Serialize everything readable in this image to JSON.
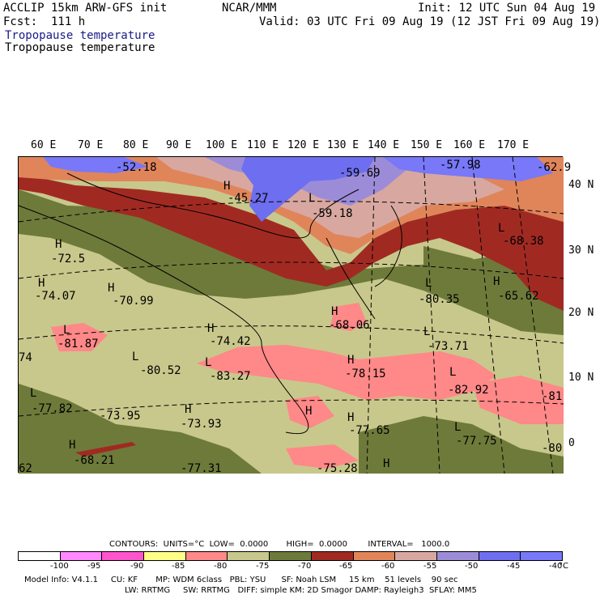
{
  "header": {
    "left_line1": "ACCLIP 15km ARW-GFS init",
    "left_line2": "Fcst:  111 h",
    "center": "NCAR/MMM",
    "right_line1": "Init: 12 UTC Sun 04 Aug 19",
    "right_line2": "Valid: 03 UTC Fri 09 Aug 19 (12 JST Fri 09 Aug 19)",
    "field_title_1": "Tropopause temperature",
    "field_title_2": "Tropopause temperature"
  },
  "map": {
    "longitude_labels": [
      "60 E",
      "70 E",
      "80 E",
      "90 E",
      "100 E",
      "110 E",
      "120 E",
      "130 E",
      "140 E",
      "150 E",
      "160 E",
      "170 E"
    ],
    "latitude_labels": [
      "40 N",
      "30 N",
      "20 N",
      "10 N",
      "0"
    ],
    "annotations": [
      {
        "text": "-52.18"
      },
      {
        "text": "-59.69"
      },
      {
        "text": "-57.98"
      },
      {
        "text": "-62.9"
      },
      {
        "text": "H"
      },
      {
        "text": "-45.27"
      },
      {
        "text": "L"
      },
      {
        "text": "-59.18"
      },
      {
        "text": "L"
      },
      {
        "text": "-68.38"
      },
      {
        "text": "H"
      },
      {
        "text": "-72.5"
      },
      {
        "text": "H"
      },
      {
        "text": "-74.07"
      },
      {
        "text": "H"
      },
      {
        "text": "-70.99"
      },
      {
        "text": "H"
      },
      {
        "text": "-65.62"
      },
      {
        "text": "L"
      },
      {
        "text": "-80.35"
      },
      {
        "text": "H"
      },
      {
        "text": "-68.06"
      },
      {
        "text": "L"
      },
      {
        "text": "-81.87"
      },
      {
        "text": "H"
      },
      {
        "text": "-74.42"
      },
      {
        "text": "L"
      },
      {
        "text": "-73.71"
      },
      {
        "text": "74"
      },
      {
        "text": "L"
      },
      {
        "text": "-80.52"
      },
      {
        "text": "L"
      },
      {
        "text": "-83.27"
      },
      {
        "text": "H"
      },
      {
        "text": "-78.15"
      },
      {
        "text": "L"
      },
      {
        "text": "-82.92"
      },
      {
        "text": "-81"
      },
      {
        "text": "L"
      },
      {
        "text": "-77.82"
      },
      {
        "text": "-73.95"
      },
      {
        "text": "H"
      },
      {
        "text": "-73.93"
      },
      {
        "text": "H"
      },
      {
        "text": "-77.65"
      },
      {
        "text": "L"
      },
      {
        "text": "-77.75"
      },
      {
        "text": "-80"
      },
      {
        "text": "H"
      },
      {
        "text": "-68.21"
      },
      {
        "text": "62"
      },
      {
        "text": "-75.28"
      },
      {
        "text": "H"
      },
      {
        "text": "-77.31"
      },
      {
        "text": "H"
      }
    ]
  },
  "legend": {
    "contours_line": "CONTOURS:  UNITS=°C  LOW=  0.0000       HIGH=  0.0000        INTERVAL=   1000.0",
    "colors": [
      "#ffffff",
      "#ff88ff",
      "#ff55cc",
      "#ffff88",
      "#ff8888",
      "#c8c88c",
      "#6e7a3a",
      "#a02a22",
      "#e0855a",
      "#d8a8a0",
      "#9c8cd8",
      "#6e6ef0",
      "#7878f8"
    ],
    "ticks": [
      "-100",
      "-95",
      "-90",
      "-85",
      "-80",
      "-75",
      "-70",
      "-65",
      "-60",
      "-55",
      "-50",
      "-45",
      "-40",
      "°C"
    ]
  },
  "footer": {
    "line1": "Model Info: V4.1.1     CU: KF       MP: WDM 6class   PBL: YSU      SF: Noah LSM     15 km    51 levels    90 sec",
    "line2": "LW: RRTMG     SW: RRTMG   DIFF: simple KM: 2D Smagor DAMP: Rayleigh3  SFLAY: MM5"
  }
}
